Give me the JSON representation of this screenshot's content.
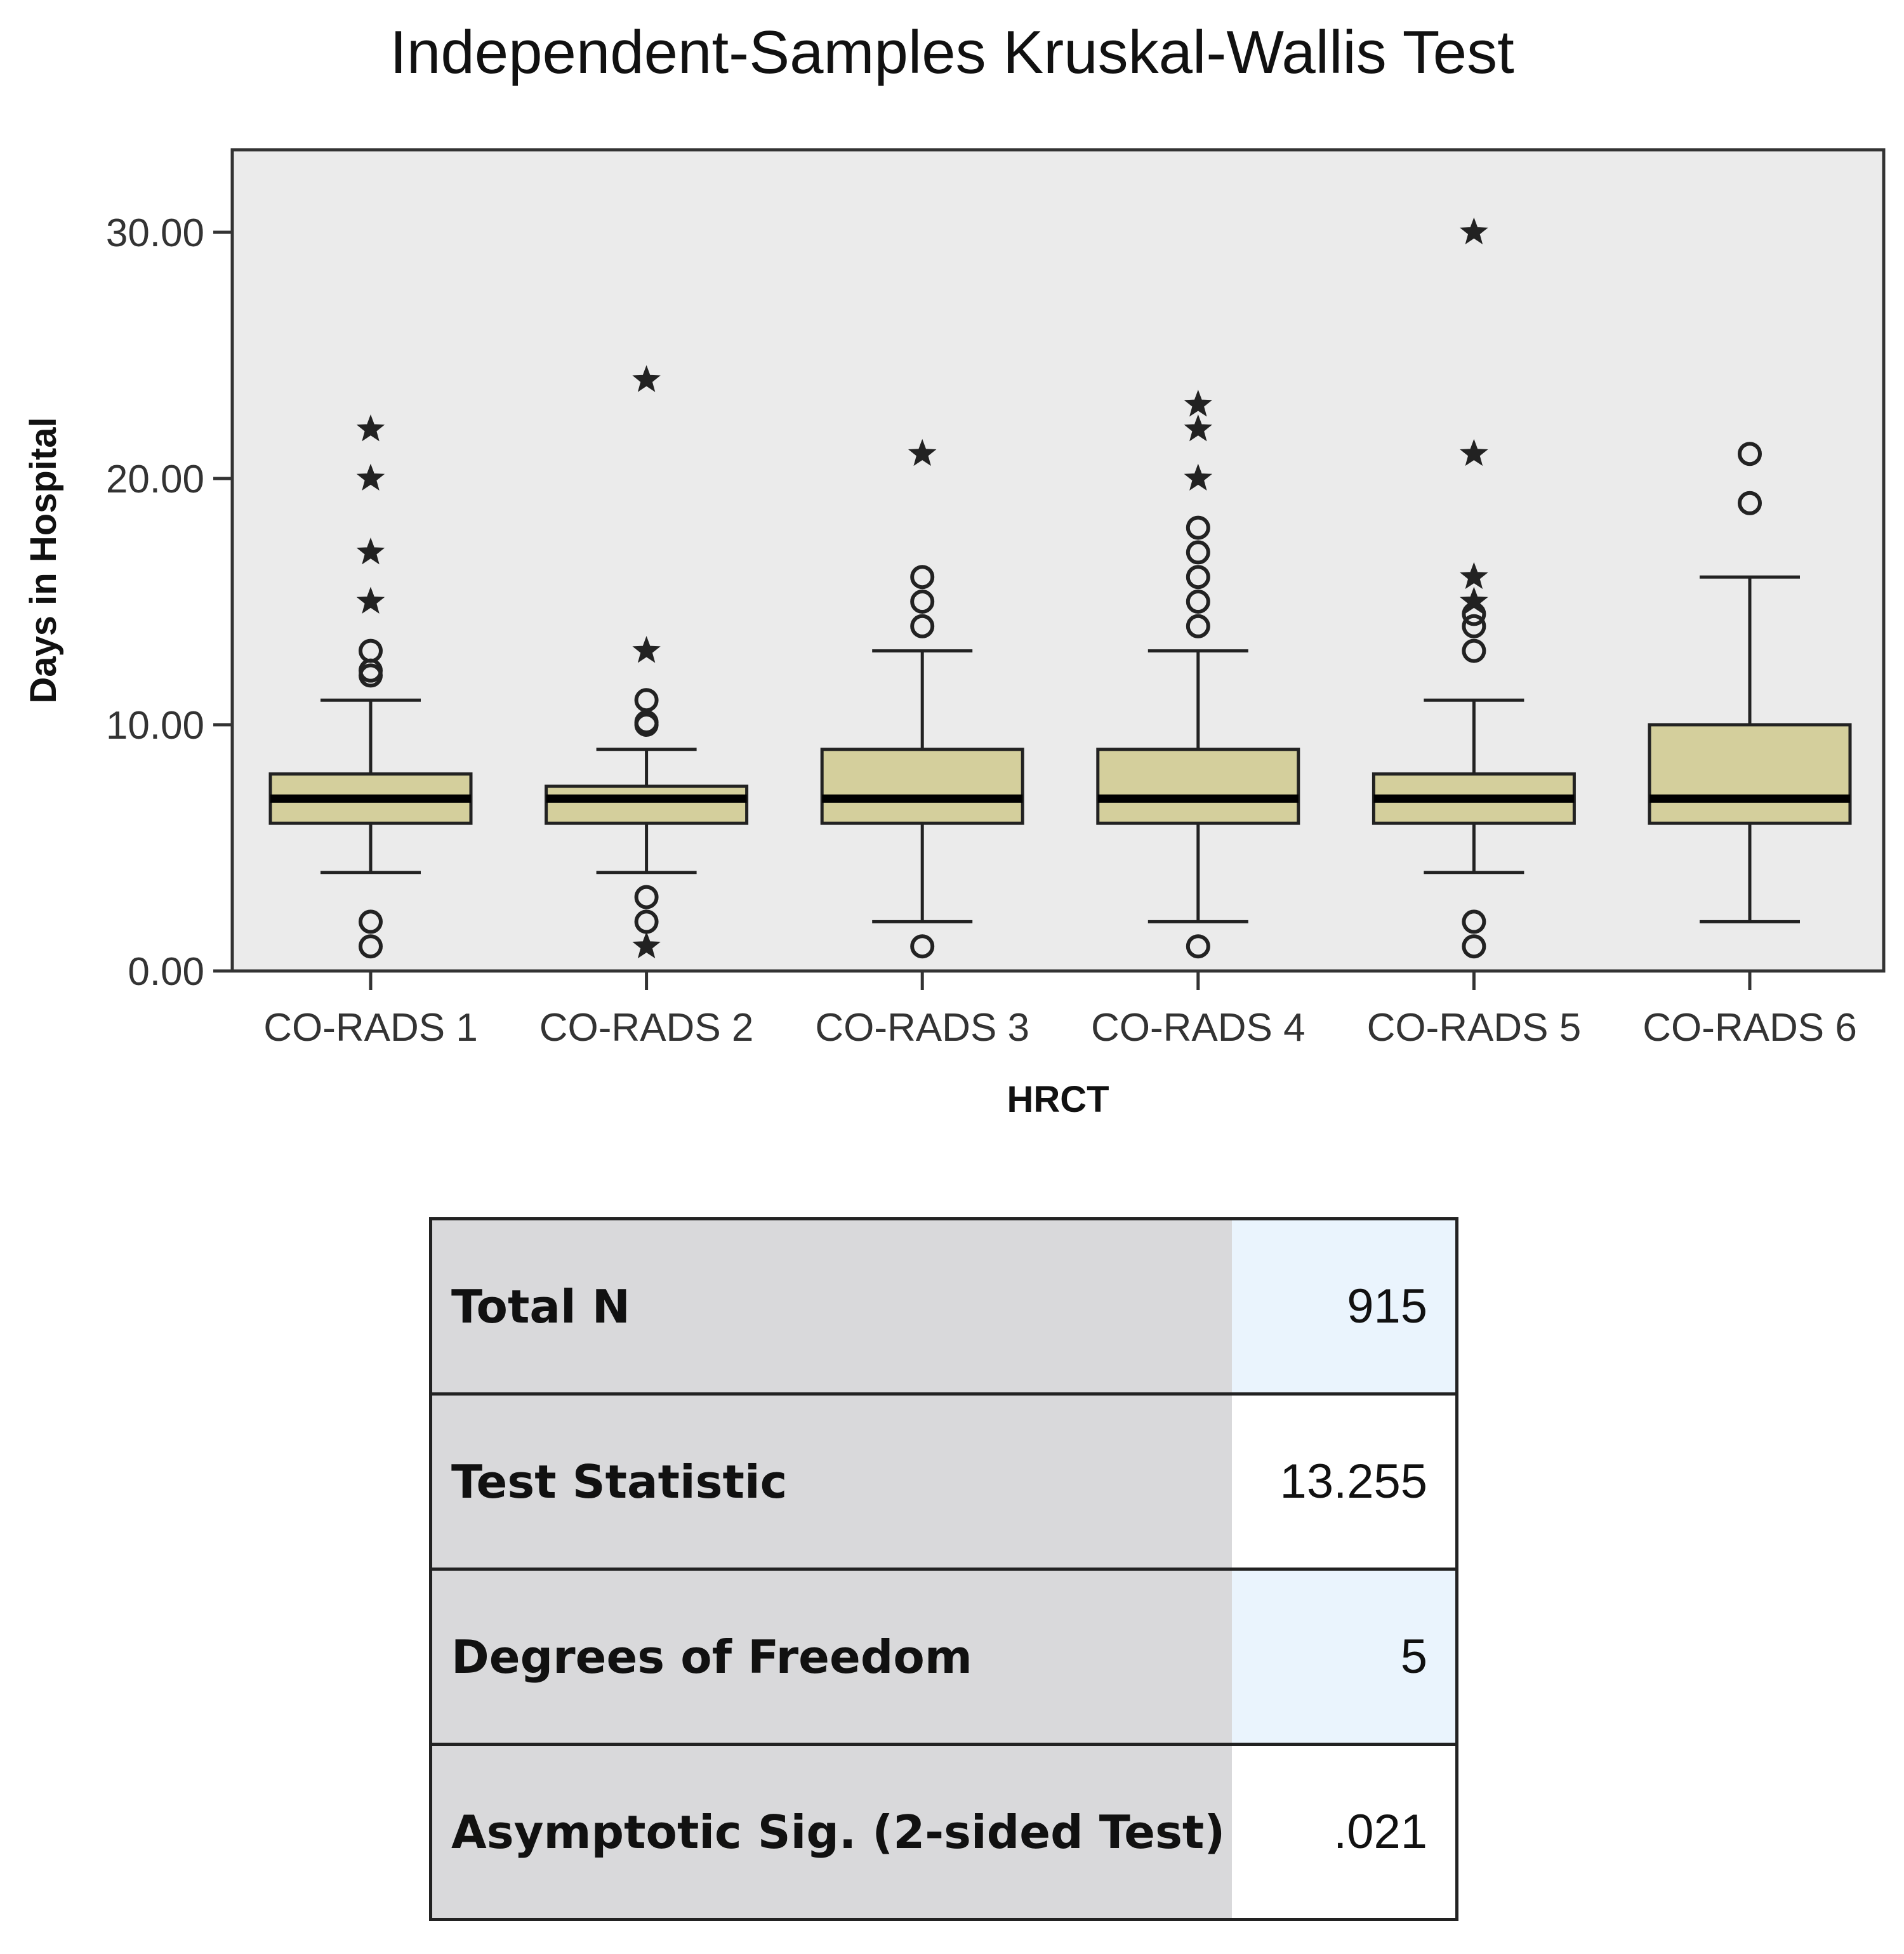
{
  "chart_data": {
    "type": "box",
    "title": "Independent-Samples Kruskal-Wallis Test",
    "xlabel": "HRCT",
    "ylabel": "Days in Hospital",
    "ylim": [
      0,
      30
    ],
    "yticks": [
      "0.00",
      "10.00",
      "20.00",
      "30.00"
    ],
    "ytick_values": [
      0,
      10,
      20,
      30
    ],
    "grid": false,
    "box_color": "#d4cf9c",
    "plot_background": "#ebebeb",
    "categories": [
      "CO-RADS 1",
      "CO-RADS 2",
      "CO-RADS 3",
      "CO-RADS 4",
      "CO-RADS 5",
      "CO-RADS 6"
    ],
    "boxes": [
      {
        "whisker_low": 4,
        "q1": 6,
        "median": 7,
        "q3": 8,
        "whisker_high": 11,
        "outliers": [
          1,
          2,
          12,
          12.2,
          13
        ],
        "extremes": [
          15,
          17,
          20,
          22
        ]
      },
      {
        "whisker_low": 4,
        "q1": 6,
        "median": 7,
        "q3": 7.5,
        "whisker_high": 9,
        "outliers": [
          2,
          3,
          10,
          10.1,
          11
        ],
        "extremes": [
          1,
          13,
          24
        ]
      },
      {
        "whisker_low": 2,
        "q1": 6,
        "median": 7,
        "q3": 9,
        "whisker_high": 13,
        "outliers": [
          1,
          14,
          15,
          16
        ],
        "extremes": [
          21
        ]
      },
      {
        "whisker_low": 2,
        "q1": 6,
        "median": 7,
        "q3": 9,
        "whisker_high": 13,
        "outliers": [
          1,
          14,
          15,
          16,
          17,
          18
        ],
        "extremes": [
          20,
          22,
          23
        ]
      },
      {
        "whisker_low": 4,
        "q1": 6,
        "median": 7,
        "q3": 8,
        "whisker_high": 11,
        "outliers": [
          1,
          2,
          13,
          14,
          14.5
        ],
        "extremes": [
          15,
          16,
          21,
          30
        ]
      },
      {
        "whisker_low": 2,
        "q1": 6,
        "median": 7,
        "q3": 10,
        "whisker_high": 16,
        "outliers": [
          19,
          21
        ],
        "extremes": []
      }
    ]
  },
  "stats_table": {
    "rows": [
      {
        "label": "Total N",
        "value": "915"
      },
      {
        "label": "Test Statistic",
        "value": "13.255"
      },
      {
        "label": "Degrees of Freedom",
        "value": "5"
      },
      {
        "label": "Asymptotic Sig. (2-sided Test)",
        "value": ".021"
      }
    ]
  }
}
